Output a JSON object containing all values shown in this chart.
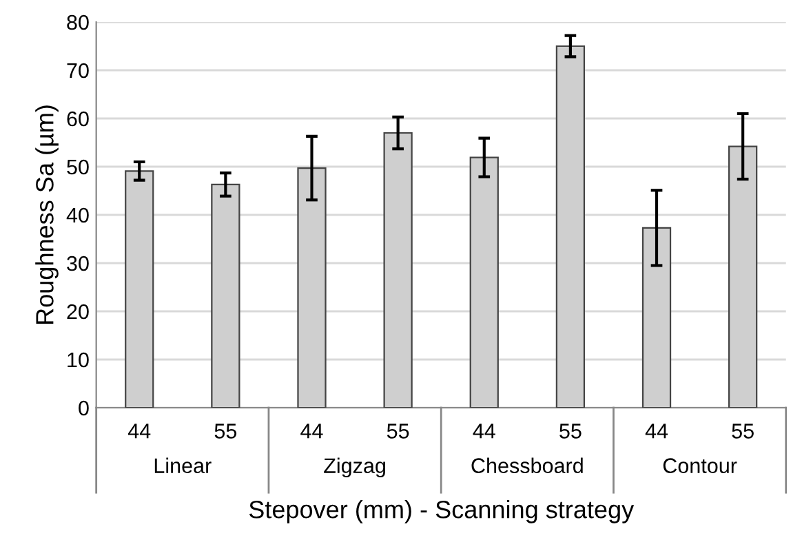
{
  "chart_data": {
    "type": "bar",
    "xlabel": "Stepover (mm) - Scanning strategy",
    "ylabel": "Roughness Sa (µm)",
    "categories": [
      "44",
      "55",
      "44",
      "55",
      "44",
      "55",
      "44",
      "55"
    ],
    "values": [
      49.1,
      46.3,
      49.7,
      57.0,
      51.9,
      75.0,
      37.3,
      54.2
    ],
    "errors": [
      1.9,
      2.4,
      6.6,
      3.3,
      4.0,
      2.2,
      7.8,
      6.8
    ],
    "color": "#cfcfcf",
    "annotations": [
      "Linear",
      "Zigzag",
      "Chessboard",
      "Contour"
    ],
    "ylim": [
      0,
      80
    ],
    "yticks": [
      0,
      10,
      20,
      30,
      40,
      50,
      60,
      70,
      80
    ],
    "grid": "y"
  }
}
